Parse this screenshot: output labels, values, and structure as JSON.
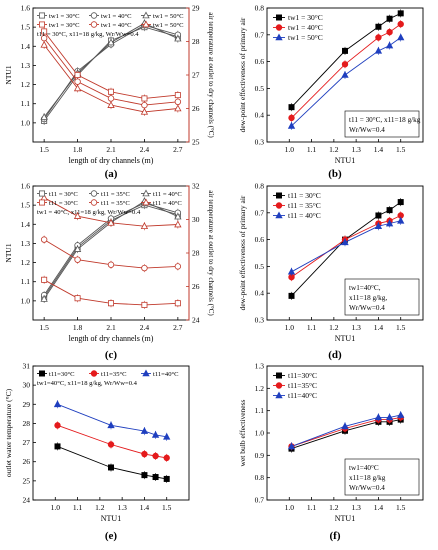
{
  "captions": [
    "(a)",
    "(b)",
    "(c)",
    "(d)",
    "(e)",
    "(f)"
  ],
  "chart_data": [
    {
      "id": "a",
      "type": "line",
      "xlabel": "length of dry channels (m)",
      "ylabel": "NTU1",
      "y2label": "air temperature at outlet to dry channels (°C)",
      "x": [
        1.5,
        1.8,
        2.1,
        2.4,
        2.7
      ],
      "xlim": [
        1.4,
        2.8
      ],
      "ylim": [
        0.9,
        1.6
      ],
      "y2lim": [
        25,
        29
      ],
      "xticks": [
        1.5,
        1.8,
        2.1,
        2.4,
        2.7
      ],
      "yticks": [
        1.0,
        1.1,
        1.2,
        1.3,
        1.4,
        1.5,
        1.6
      ],
      "y2ticks": [
        25,
        26,
        27,
        28,
        29
      ],
      "legend_cols": 3,
      "legend": [
        "tw1 = 30°C",
        "tw1 = 40°C",
        "tw1 = 50°C",
        "tw1 = 30°C",
        "tw1 = 40°C",
        "tw1 = 50°C"
      ],
      "legend_cond": "t11 = 30°C, x11=18 g/kg, Wr/Ww=0.4",
      "series": [
        {
          "axis": "left",
          "color": "#555555",
          "values": [
            1.01,
            1.25,
            1.43,
            1.5,
            1.45
          ]
        },
        {
          "axis": "left",
          "color": "#555555",
          "values": [
            1.02,
            1.27,
            1.41,
            1.51,
            1.46
          ]
        },
        {
          "axis": "left",
          "color": "#555555",
          "values": [
            1.03,
            1.26,
            1.42,
            1.52,
            1.44
          ]
        },
        {
          "axis": "right",
          "color": "#c0392b",
          "values": [
            28.3,
            27.0,
            26.5,
            26.3,
            26.4
          ]
        },
        {
          "axis": "right",
          "color": "#c0392b",
          "values": [
            28.1,
            26.8,
            26.3,
            26.1,
            26.2
          ]
        },
        {
          "axis": "right",
          "color": "#c0392b",
          "values": [
            27.9,
            26.6,
            26.1,
            25.9,
            26.0
          ]
        }
      ]
    },
    {
      "id": "b",
      "type": "line",
      "xlabel": "NTU1",
      "ylabel": "dew-point effectiveness of primary air",
      "xlim": [
        0.9,
        1.6
      ],
      "ylim": [
        0.3,
        0.8
      ],
      "xticks": [
        1.0,
        1.1,
        1.2,
        1.3,
        1.4,
        1.5
      ],
      "yticks": [
        0.3,
        0.4,
        0.5,
        0.6,
        0.7,
        0.8
      ],
      "x": [
        1.01,
        1.25,
        1.4,
        1.45,
        1.5
      ],
      "legend_cols": 1,
      "legend": [
        "tw1 = 30°C",
        "tw1 = 40°C",
        "tw1 = 50°C"
      ],
      "legend_cond": "t11 = 30°C, x11=18 g/kg\nWr/Ww=0.4",
      "series": [
        {
          "marker": "square",
          "color": "#000000",
          "values": [
            0.43,
            0.64,
            0.73,
            0.76,
            0.78
          ]
        },
        {
          "marker": "circle",
          "color": "#e41a1c",
          "values": [
            0.39,
            0.59,
            0.69,
            0.71,
            0.74
          ]
        },
        {
          "marker": "triangle",
          "color": "#1f3fbf",
          "values": [
            0.36,
            0.55,
            0.64,
            0.66,
            0.69
          ]
        }
      ]
    },
    {
      "id": "c",
      "type": "line",
      "xlabel": "length of dry channels (m)",
      "ylabel": "NTU1",
      "y2label": "air temperature at outlet to dry channels (°C)",
      "x": [
        1.5,
        1.8,
        2.1,
        2.4,
        2.7
      ],
      "xlim": [
        1.4,
        2.8
      ],
      "ylim": [
        0.9,
        1.6
      ],
      "y2lim": [
        24,
        32
      ],
      "xticks": [
        1.5,
        1.8,
        2.1,
        2.4,
        2.7
      ],
      "yticks": [
        1.0,
        1.1,
        1.2,
        1.3,
        1.4,
        1.5,
        1.6
      ],
      "y2ticks": [
        24,
        26,
        28,
        30,
        32
      ],
      "legend_cols": 3,
      "legend": [
        "t11 = 30°C",
        "t11 = 35°C",
        "t11 = 40°C",
        "t11 = 30°C",
        "t11 = 35°C",
        "t11 = 40°C"
      ],
      "legend_cond": "tw1 = 40°C, x11=18 g/kg, Wr/Ww=0.4",
      "series": [
        {
          "axis": "left",
          "color": "#555555",
          "values": [
            1.02,
            1.28,
            1.42,
            1.5,
            1.45
          ]
        },
        {
          "axis": "left",
          "color": "#555555",
          "values": [
            1.03,
            1.29,
            1.43,
            1.51,
            1.46
          ]
        },
        {
          "axis": "left",
          "color": "#555555",
          "values": [
            1.01,
            1.27,
            1.41,
            1.52,
            1.44
          ]
        },
        {
          "axis": "right",
          "color": "#c0392b",
          "values": [
            26.4,
            25.3,
            25.0,
            24.9,
            25.0
          ]
        },
        {
          "axis": "right",
          "color": "#c0392b",
          "values": [
            28.8,
            27.6,
            27.3,
            27.1,
            27.2
          ]
        },
        {
          "axis": "right",
          "color": "#c0392b",
          "values": [
            31.3,
            30.2,
            29.8,
            29.6,
            29.7
          ]
        }
      ]
    },
    {
      "id": "d",
      "type": "line",
      "xlabel": "NTU1",
      "ylabel": "dew-point effectiveness of primary air",
      "xlim": [
        0.9,
        1.6
      ],
      "ylim": [
        0.3,
        0.8
      ],
      "xticks": [
        1.0,
        1.1,
        1.2,
        1.3,
        1.4,
        1.5
      ],
      "yticks": [
        0.3,
        0.4,
        0.5,
        0.6,
        0.7,
        0.8
      ],
      "x": [
        1.01,
        1.25,
        1.4,
        1.45,
        1.5
      ],
      "legend_cols": 1,
      "legend": [
        "t11 = 30°C",
        "t11 = 35°C",
        "t11 = 40°C"
      ],
      "legend_cond": "tw1=40°C,\nx11=18 g/kg,\nWr/Ww=0.4",
      "series": [
        {
          "marker": "square",
          "color": "#000000",
          "values": [
            0.39,
            0.6,
            0.69,
            0.71,
            0.74
          ]
        },
        {
          "marker": "circle",
          "color": "#e41a1c",
          "values": [
            0.46,
            0.6,
            0.66,
            0.67,
            0.69
          ]
        },
        {
          "marker": "triangle",
          "color": "#1f3fbf",
          "values": [
            0.48,
            0.59,
            0.65,
            0.66,
            0.67
          ]
        }
      ]
    },
    {
      "id": "e",
      "type": "line",
      "xlabel": "NTU1",
      "ylabel": "outlet water temperature (°C)",
      "xlim": [
        0.9,
        1.6
      ],
      "ylim": [
        24,
        31
      ],
      "xticks": [
        1.0,
        1.1,
        1.2,
        1.3,
        1.4,
        1.5
      ],
      "yticks": [
        24,
        25,
        26,
        27,
        28,
        29,
        30,
        31
      ],
      "x": [
        1.01,
        1.25,
        1.4,
        1.45,
        1.5
      ],
      "legend_cols": 3,
      "legend": [
        "t11=30°C",
        "t11=35°C",
        "t11=40°C"
      ],
      "legend_cond": "tw1=40°C, x11=18 g/kg, Wr/Ww=0.4",
      "series": [
        {
          "marker": "square",
          "color": "#000000",
          "values": [
            26.8,
            25.7,
            25.3,
            25.2,
            25.1
          ]
        },
        {
          "marker": "circle",
          "color": "#e41a1c",
          "values": [
            27.9,
            26.9,
            26.4,
            26.3,
            26.2
          ]
        },
        {
          "marker": "triangle",
          "color": "#1f3fbf",
          "values": [
            29.0,
            27.9,
            27.6,
            27.4,
            27.3
          ]
        }
      ]
    },
    {
      "id": "f",
      "type": "line",
      "xlabel": "NTU1",
      "ylabel": "wet bulb effectiveness",
      "xlim": [
        0.9,
        1.6
      ],
      "ylim": [
        0.7,
        1.3
      ],
      "xticks": [
        1.0,
        1.1,
        1.2,
        1.3,
        1.4,
        1.5
      ],
      "yticks": [
        0.7,
        0.8,
        0.9,
        1.0,
        1.1,
        1.2,
        1.3
      ],
      "x": [
        1.01,
        1.25,
        1.4,
        1.45,
        1.5
      ],
      "legend_cols": 1,
      "legend": [
        "t11=30°C",
        "t11=35°C",
        "t11=40°C"
      ],
      "legend_cond": "tw1=40°C\nx11=18 g/kg\nWr/Ww=0.4",
      "series": [
        {
          "marker": "square",
          "color": "#000000",
          "values": [
            0.93,
            1.01,
            1.05,
            1.05,
            1.06
          ]
        },
        {
          "marker": "circle",
          "color": "#e41a1c",
          "values": [
            0.94,
            1.02,
            1.06,
            1.06,
            1.07
          ]
        },
        {
          "marker": "triangle",
          "color": "#1f3fbf",
          "values": [
            0.94,
            1.03,
            1.07,
            1.07,
            1.08
          ]
        }
      ]
    }
  ]
}
